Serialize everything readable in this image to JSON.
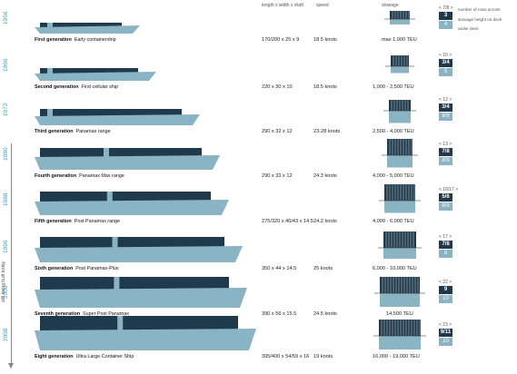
{
  "headers": {
    "dimensions": "length x width x draft",
    "speed": "speed",
    "stowage": "stowage"
  },
  "legend": {
    "rows_across": "number of rows across",
    "above_deck": "stowage height on deck",
    "below_deck": "under deck"
  },
  "timeline_label": "still being built today",
  "colors": {
    "hull": "#1f3a4d",
    "lower_hull": "#8ab3c3",
    "accent": "#2aa6c8"
  },
  "generations": [
    {
      "year": "1956",
      "name": "First generation",
      "desc": "Early containership",
      "dims": "170/200 x 25 x 9",
      "speed": "18.5 knots",
      "teu": "max 1,000 TEU",
      "rows": "< 7/8 >",
      "above": "3",
      "below": "4"
    },
    {
      "year": "1966",
      "name": "Second generation",
      "desc": "First cellular ship",
      "dims": "220 x 30 x 10",
      "speed": "18.5 knots",
      "teu": "1,000 - 2,500 TEU",
      "rows": "< 10 >",
      "above": "3/4",
      "below": "5"
    },
    {
      "year": "1972",
      "name": "Third generation",
      "desc": "Panamax range",
      "dims": "290 x 32 x 12",
      "speed": "23-28 knots",
      "teu": "2,500 - 4,000 TEU",
      "rows": "< 12 >",
      "above": "3/4",
      "below": "8/9"
    },
    {
      "year": "1980",
      "name": "Fourth generation",
      "desc": "Panamax Max range",
      "dims": "290 x 32 x 12",
      "speed": "24.3 knots",
      "teu": "4,000 - 5,000 TEU",
      "rows": "< 13 >",
      "above": "7/8",
      "below": "8/9"
    },
    {
      "year": "1988",
      "name": "Fifth generation",
      "desc": "Post Panamax range",
      "dims": "275/320 x 40/43 x 14.5",
      "speed": "24.2 knots",
      "teu": "4,000 - 6,000 TEU",
      "rows": "< 16/17 >",
      "above": "5/6",
      "below": "8/9"
    },
    {
      "year": "1996",
      "name": "Sixth generation",
      "desc": "Post Panamax-Plus",
      "dims": "350 x 44 x 14.5",
      "speed": "25 knots",
      "teu": "6,000 - 10,000 TEU",
      "rows": "< 17 >",
      "above": "7/8",
      "below": "8"
    },
    {
      "year": "2006",
      "name": "Seventh generation",
      "desc": "Super Post Panamax",
      "dims": "390 x 56 x 15.5",
      "speed": "24.5 knots",
      "teu": "14,500 TEU",
      "rows": "< 22 >",
      "above": "9",
      "below": "10"
    },
    {
      "year": "2008",
      "name": "Eight generation",
      "desc": "Ultra Large Container Ship",
      "dims": "395/400 x 54/59 x 16",
      "speed": "19 knots",
      "teu": "16,000 - 19,000 TEU",
      "rows": "< 23 >",
      "above": "9/11",
      "below": "10"
    }
  ]
}
